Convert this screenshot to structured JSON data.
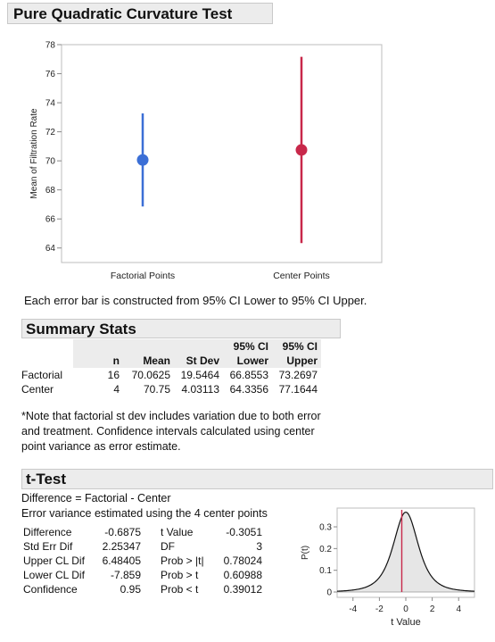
{
  "title": "Pure Quadratic Curvature Test",
  "chart_data": {
    "type": "scatter",
    "ylabel": "Mean of Filtration Rate",
    "xlabel": "",
    "ylim": [
      63,
      78
    ],
    "yticks": [
      "64",
      "66",
      "68",
      "70",
      "72",
      "74",
      "76",
      "78"
    ],
    "categories": [
      "Factorial Points",
      "Center Points"
    ],
    "points": [
      {
        "category": "Factorial Points",
        "mean": 70.0625,
        "lower": 66.8553,
        "upper": 73.2697,
        "color": "#3b6fd6"
      },
      {
        "category": "Center Points",
        "mean": 70.75,
        "lower": 64.3356,
        "upper": 77.1644,
        "color": "#c8284a"
      }
    ],
    "caption": "Each error bar is constructed from 95% CI Lower to 95% CI Upper."
  },
  "summary": {
    "header": "Summary Stats",
    "columns": [
      {
        "l1": "",
        "l2": "n"
      },
      {
        "l1": "",
        "l2": "Mean"
      },
      {
        "l1": "",
        "l2": "St Dev"
      },
      {
        "l1": "95% CI",
        "l2": "Lower"
      },
      {
        "l1": "95% CI",
        "l2": "Upper"
      }
    ],
    "rows": [
      {
        "label": "Factorial",
        "cells": [
          "16",
          "70.0625",
          "19.5464",
          "66.8553",
          "73.2697"
        ]
      },
      {
        "label": "Center",
        "cells": [
          "4",
          "70.75",
          "4.03113",
          "64.3356",
          "77.1644"
        ]
      }
    ],
    "note": [
      "*Note that factorial st dev includes variation due to both error",
      "and treatment. Confidence intervals calculated using center",
      "point variance as error estimate."
    ]
  },
  "ttest": {
    "header": "t-Test",
    "line1": "Difference = Factorial - Center",
    "line2": "Error variance estimated using the 4 center points",
    "left_stats": [
      {
        "label": "Difference",
        "value": "-0.6875"
      },
      {
        "label": "Std Err Dif",
        "value": "2.25347"
      },
      {
        "label": "Upper CL Dif",
        "value": "6.48405"
      },
      {
        "label": "Lower CL Dif",
        "value": "-7.859"
      },
      {
        "label": "Confidence",
        "value": "0.95"
      }
    ],
    "right_stats": [
      {
        "label": "t Value",
        "value": "-0.3051"
      },
      {
        "label": "DF",
        "value": "3"
      },
      {
        "label": "Prob > |t|",
        "value": "0.78024"
      },
      {
        "label": "Prob > t",
        "value": "0.60988"
      },
      {
        "label": "Prob < t",
        "value": "0.39012"
      }
    ],
    "plot": {
      "xlabel": "t Value",
      "ylabel": "P(t)",
      "xticks": [
        "-4",
        "-2",
        "0",
        "2",
        "4"
      ],
      "yticks": [
        "0",
        "0.1",
        "0.2",
        "0.3"
      ],
      "df": 3,
      "t_value": -0.3051,
      "line_color": "#c8284a"
    }
  }
}
